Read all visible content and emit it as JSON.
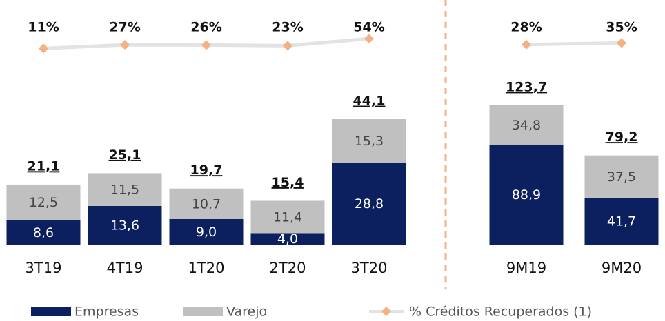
{
  "chart_data": [
    {
      "type": "bar",
      "stacked": true,
      "categories": [
        "3T19",
        "4T19",
        "1T20",
        "2T20",
        "3T20"
      ],
      "series": [
        {
          "name": "Empresas",
          "color": "#0c1f5e",
          "values": [
            8.6,
            13.6,
            9.0,
            4.0,
            28.8
          ],
          "value_labels": [
            "8,6",
            "13,6",
            "9,0",
            "4,0",
            "28,8"
          ]
        },
        {
          "name": "Varejo",
          "color": "#c0c0c0",
          "values": [
            12.5,
            11.5,
            10.7,
            11.4,
            15.3
          ],
          "value_labels": [
            "12,5",
            "11,5",
            "10,7",
            "11,4",
            "15,3"
          ]
        },
        {
          "name": "% Créditos Recuperados (1)",
          "type": "line",
          "color": "#f4b183",
          "line_color": "#e3e3e3",
          "values": [
            11,
            27,
            26,
            23,
            54
          ],
          "value_labels": [
            "11%",
            "27%",
            "26%",
            "23%",
            "54%"
          ]
        }
      ],
      "totals": [
        21.1,
        25.1,
        19.7,
        15.4,
        44.1
      ],
      "total_labels": [
        "21,1",
        "25,1",
        "19,7",
        "15,4",
        "44,1"
      ]
    },
    {
      "type": "bar",
      "stacked": true,
      "categories": [
        "9M19",
        "9M20"
      ],
      "series": [
        {
          "color": "#0c1f5e",
          "values": [
            88.9,
            41.7
          ],
          "value_labels": [
            "88,9",
            "41,7"
          ]
        },
        {
          "color": "#c0c0c0",
          "values": [
            34.8,
            37.5
          ],
          "value_labels": [
            "34,8",
            "37,5"
          ]
        },
        {
          "type": "line",
          "color": "#f4b183",
          "line_color": "#e3e3e3",
          "values": [
            28,
            35
          ],
          "value_labels": [
            "28%",
            "35%"
          ]
        }
      ],
      "totals": [
        123.7,
        79.2
      ],
      "total_labels": [
        "123,7",
        "79,2"
      ]
    }
  ]
}
